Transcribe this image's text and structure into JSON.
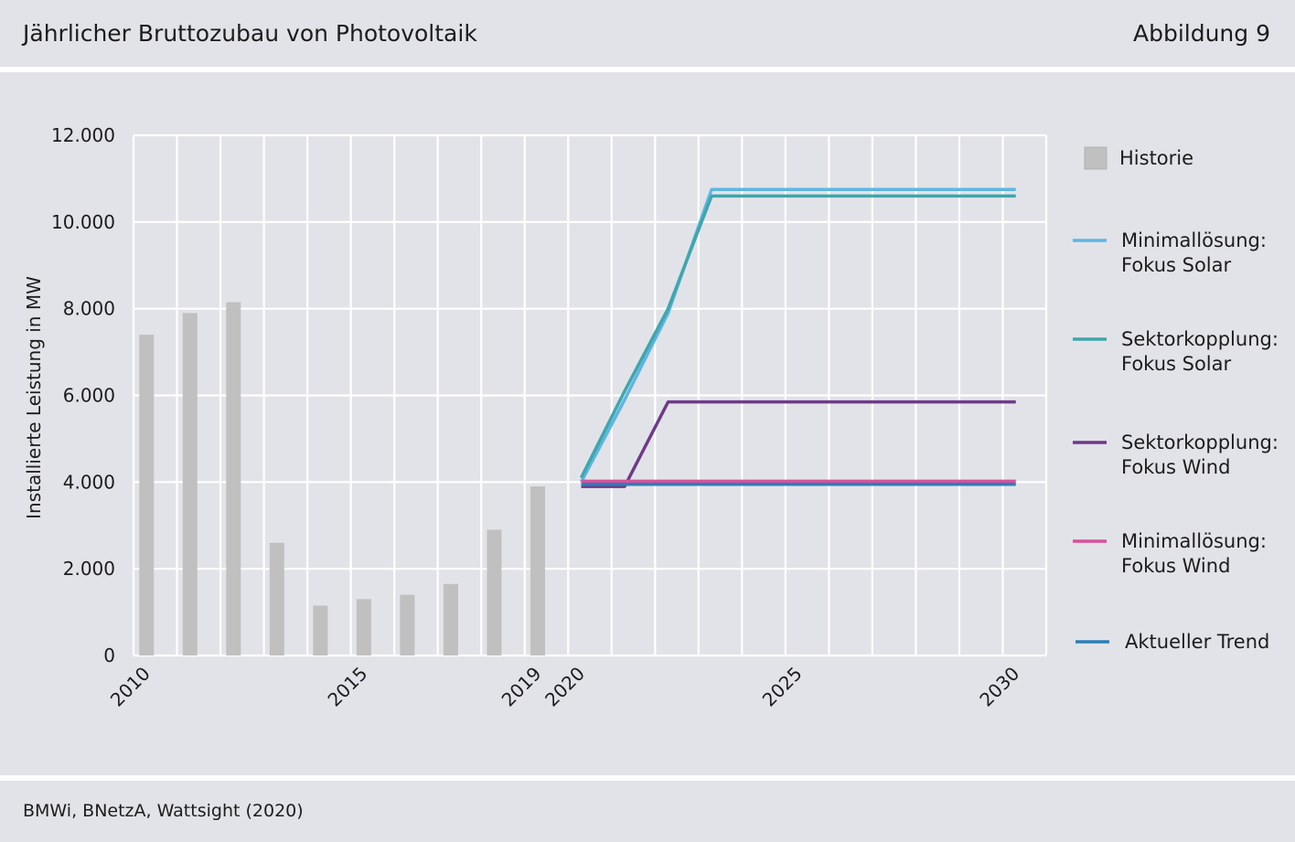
{
  "header": {
    "title": "Jährlicher Bruttozubau von Photovoltaik",
    "figure_number": "Abbildung 9"
  },
  "footer": {
    "source": "BMWi, BNetzA, Wattsight (2020)"
  },
  "colors": {
    "background_band": "#e2e3e8",
    "grid": "#ffffff",
    "historie": "#c0c0c0"
  },
  "chart_data": {
    "type": "bar",
    "title": "",
    "xlabel": "",
    "ylabel": "Installierte Leistung in MW",
    "xlim": [
      2009.7,
      2030.7
    ],
    "ylim": [
      0,
      12000
    ],
    "yticks": [
      0,
      2000,
      4000,
      6000,
      8000,
      10000,
      12000
    ],
    "ytick_labels": [
      "0",
      "2.000",
      "4.000",
      "6.000",
      "8.000",
      "10.000",
      "12.000"
    ],
    "xtick_labels": [
      {
        "x": 2010,
        "label": "2010"
      },
      {
        "x": 2015,
        "label": "2015"
      },
      {
        "x": 2019,
        "label": "2019"
      },
      {
        "x": 2020,
        "label": "2020"
      },
      {
        "x": 2025,
        "label": "2025"
      },
      {
        "x": 2030,
        "label": "2030"
      }
    ],
    "grid": true,
    "legend_position": "right",
    "bars": {
      "name": "Historie",
      "color": "#c0c0c0",
      "x": [
        2010,
        2011,
        2012,
        2013,
        2014,
        2015,
        2016,
        2017,
        2018,
        2019
      ],
      "values": [
        7400,
        7900,
        8150,
        2600,
        1150,
        1300,
        1400,
        1650,
        2900,
        3900
      ]
    },
    "series": [
      {
        "name": "Minimallösung: Fokus Solar",
        "legend_lines": [
          "Minimallösung:",
          "Fokus Solar"
        ],
        "color": "#5db6e3",
        "x": [
          2020,
          2021,
          2022,
          2023,
          2024,
          2025,
          2026,
          2027,
          2028,
          2029,
          2030
        ],
        "values": [
          4000,
          5900,
          7900,
          10750,
          10750,
          10750,
          10750,
          10750,
          10750,
          10750,
          10750
        ]
      },
      {
        "name": "Sektorkopplung: Fokus Solar",
        "legend_lines": [
          "Sektorkopplung:",
          "Fokus Solar"
        ],
        "color": "#3fa6ad",
        "x": [
          2020,
          2021,
          2022,
          2023,
          2024,
          2025,
          2026,
          2027,
          2028,
          2029,
          2030
        ],
        "values": [
          4100,
          6100,
          8000,
          10600,
          10600,
          10600,
          10600,
          10600,
          10600,
          10600,
          10600
        ]
      },
      {
        "name": "Sektorkopplung: Fokus Wind",
        "legend_lines": [
          "Sektorkopplung:",
          "Fokus Wind"
        ],
        "color": "#6e3a8a",
        "x": [
          2020,
          2021,
          2022,
          2023,
          2024,
          2025,
          2026,
          2027,
          2028,
          2029,
          2030
        ],
        "values": [
          3900,
          3900,
          5850,
          5850,
          5850,
          5850,
          5850,
          5850,
          5850,
          5850,
          5850
        ]
      },
      {
        "name": "Minimallösung: Fokus Wind",
        "legend_lines": [
          "Minimallösung:",
          "Fokus Wind"
        ],
        "color": "#d9509b",
        "x": [
          2020,
          2021,
          2022,
          2023,
          2024,
          2025,
          2026,
          2027,
          2028,
          2029,
          2030
        ],
        "values": [
          4020,
          4020,
          4020,
          4020,
          4020,
          4020,
          4020,
          4020,
          4020,
          4020,
          4020
        ]
      },
      {
        "name": "Aktueller Trend",
        "legend_lines": [
          "Aktueller Trend"
        ],
        "color": "#2a7fb8",
        "x": [
          2020,
          2021,
          2022,
          2023,
          2024,
          2025,
          2026,
          2027,
          2028,
          2029,
          2030
        ],
        "values": [
          3950,
          3950,
          3950,
          3950,
          3950,
          3950,
          3950,
          3950,
          3950,
          3950,
          3950
        ]
      }
    ]
  }
}
